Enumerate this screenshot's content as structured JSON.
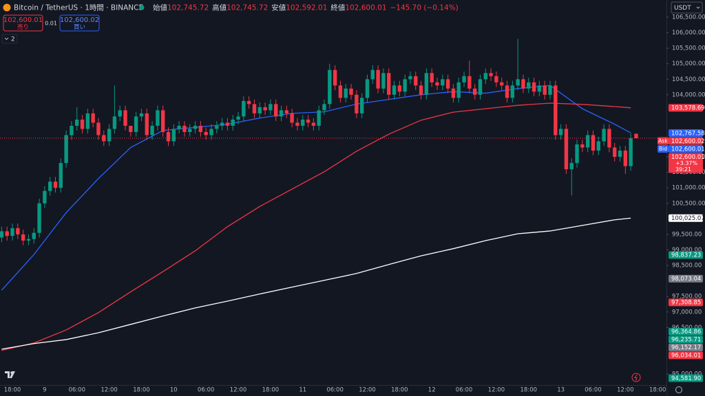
{
  "header": {
    "symbol": "Bitcoin / TetherUS · 1時間 · BINANCE",
    "ohlc": [
      {
        "label": "始値",
        "value": "102,745.72"
      },
      {
        "label": "高値",
        "value": "102,745.72"
      },
      {
        "label": "安値",
        "value": "102,592.01"
      },
      {
        "label": "終値",
        "value": "102,600.01"
      }
    ],
    "change": "−145.70 (−0.14%)"
  },
  "trade": {
    "sell_price": "102,600.01",
    "sell": "売り",
    "spread": "0.01",
    "buy_price": "102,600.02",
    "buy": "買い"
  },
  "indicators_count": "2",
  "currency": "USDT",
  "chart_data": {
    "type": "candlestick",
    "categories": [
      null,
      null,
      "18:00",
      null,
      null,
      null,
      null,
      null,
      "9",
      null,
      null,
      null,
      null,
      null,
      "06:00",
      null,
      null,
      null,
      null,
      null,
      "12:00",
      null,
      null,
      null,
      null,
      null,
      "18:00",
      null,
      null,
      null,
      null,
      null,
      "10",
      null,
      null,
      null,
      null,
      null,
      "06:00",
      null,
      null,
      null,
      null,
      null,
      "12:00",
      null,
      null,
      null,
      null,
      null,
      "18:00",
      null,
      null,
      null,
      null,
      null,
      "11",
      null,
      null,
      null,
      null,
      null,
      "06:00",
      null,
      null,
      null,
      null,
      null,
      "12:00",
      null,
      null,
      null,
      null,
      null,
      "18:00",
      null,
      null,
      null,
      null,
      null,
      "12",
      null,
      null,
      null,
      null,
      null,
      "06:00",
      null,
      null,
      null,
      null,
      null,
      "12:00",
      null,
      null,
      null,
      null,
      null,
      "18:00",
      null,
      null,
      null,
      null,
      null,
      "13",
      null,
      null,
      null,
      null,
      null,
      "06:00",
      null,
      null,
      null,
      null,
      null,
      "12:00",
      null,
      null,
      null,
      null,
      null,
      "18:00"
    ],
    "open": [
      99400,
      99600,
      99450,
      99700,
      99500,
      99300,
      99350,
      99550,
      100500,
      100900,
      101200,
      101000,
      101800,
      102700,
      103000,
      103200,
      102900,
      103400,
      103100,
      102700,
      102500,
      102900,
      103300,
      103500,
      103000,
      102800,
      103300,
      103400,
      102700,
      103000,
      103500,
      102800,
      102500,
      102900,
      103000,
      102800,
      102900,
      103000,
      102800,
      102700,
      102900,
      103000,
      103100,
      103000,
      103200,
      103300,
      103800,
      103700,
      103400,
      103600,
      103500,
      103700,
      103300,
      103500,
      103400,
      103100,
      103000,
      103200,
      103100,
      103000,
      103500,
      103700,
      104800,
      104300,
      103900,
      104200,
      104000,
      103400,
      103900,
      104500,
      104800,
      104200,
      104700,
      104000,
      104300,
      104100,
      104500,
      104600,
      104300,
      104000,
      104700,
      104400,
      104300,
      104500,
      104200,
      103900,
      104400,
      104600,
      104200,
      104000,
      104500,
      104700,
      104600,
      104400,
      104300,
      103900,
      104300,
      104500,
      104200,
      104400,
      104100,
      104300,
      104000,
      104300,
      102700,
      102900,
      101600,
      101800,
      102400,
      102300,
      102700,
      102200,
      102500,
      102900,
      102300,
      102000,
      102200,
      101700,
      102745.72,
      null,
      null,
      null,
      null
    ],
    "high": [
      99750,
      99750,
      99850,
      99850,
      99650,
      99500,
      99700,
      100650,
      101050,
      101350,
      101350,
      101950,
      102850,
      103150,
      103600,
      103350,
      103550,
      103550,
      103250,
      102850,
      103050,
      104300,
      103650,
      103650,
      102950,
      103450,
      103550,
      103550,
      103150,
      103650,
      103650,
      102950,
      103050,
      103150,
      103150,
      103050,
      103150,
      103150,
      102950,
      103050,
      103150,
      103250,
      103250,
      103350,
      103450,
      103950,
      103950,
      103850,
      103750,
      103750,
      103850,
      103850,
      103650,
      103650,
      103550,
      103250,
      103350,
      103350,
      103250,
      103650,
      103850,
      105000,
      104950,
      104450,
      104350,
      104350,
      104150,
      104050,
      104650,
      104950,
      104950,
      104850,
      104850,
      104450,
      104450,
      104650,
      104750,
      104750,
      104450,
      104850,
      104850,
      104550,
      104650,
      104650,
      104350,
      104550,
      104750,
      105100,
      104350,
      104650,
      104850,
      104850,
      104750,
      104550,
      104450,
      104450,
      105800,
      104650,
      104550,
      104550,
      104450,
      104450,
      104450,
      104450,
      103050,
      103050,
      101950,
      102550,
      102550,
      102850,
      102850,
      102650,
      103050,
      103050,
      102450,
      102350,
      102350,
      102750,
      102745.72,
      null,
      null,
      null,
      null
    ],
    "low": [
      99250,
      99300,
      99300,
      99350,
      99150,
      99150,
      99200,
      99400,
      100350,
      100750,
      100850,
      100850,
      101650,
      102550,
      102850,
      102750,
      102750,
      102950,
      102550,
      102350,
      102350,
      102750,
      103150,
      102850,
      102650,
      102650,
      103150,
      102550,
      102550,
      102850,
      102650,
      102350,
      102350,
      102750,
      102650,
      102650,
      102750,
      102650,
      102550,
      102550,
      102750,
      102850,
      102850,
      102850,
      103050,
      103150,
      103550,
      103250,
      103250,
      103350,
      103350,
      103150,
      103150,
      103250,
      102950,
      102850,
      102850,
      102950,
      102850,
      102850,
      103350,
      103550,
      104150,
      103750,
      103750,
      103850,
      103250,
      103250,
      103750,
      104350,
      104050,
      104050,
      103850,
      103850,
      103950,
      103950,
      104350,
      104150,
      103850,
      103850,
      104250,
      104150,
      104150,
      104050,
      103750,
      103750,
      104250,
      104050,
      103850,
      103850,
      104350,
      104450,
      104250,
      104150,
      103750,
      103750,
      104150,
      104050,
      104050,
      103950,
      103950,
      103850,
      103850,
      102550,
      102550,
      101450,
      100750,
      101650,
      102150,
      102150,
      102050,
      102050,
      102350,
      102150,
      101850,
      101850,
      101450,
      101550,
      102592.01,
      null,
      null,
      null,
      null
    ],
    "close": [
      99600,
      99450,
      99700,
      99500,
      99300,
      99350,
      99550,
      100500,
      100900,
      101200,
      101000,
      101800,
      102700,
      103000,
      103200,
      102900,
      103400,
      103100,
      102700,
      102500,
      102900,
      103300,
      103500,
      103000,
      102800,
      103300,
      103400,
      102700,
      103000,
      103500,
      102800,
      102500,
      102900,
      103000,
      102800,
      102900,
      103000,
      102800,
      102700,
      102900,
      103000,
      103100,
      103000,
      103200,
      103300,
      103800,
      103700,
      103400,
      103600,
      103500,
      103700,
      103300,
      103500,
      103400,
      103100,
      103000,
      103200,
      103100,
      103000,
      103500,
      103700,
      104800,
      104300,
      103900,
      104200,
      104000,
      103400,
      103900,
      104500,
      104800,
      104200,
      104700,
      104000,
      104300,
      104100,
      104500,
      104600,
      104300,
      104000,
      104700,
      104400,
      104300,
      104500,
      104200,
      103900,
      104400,
      104600,
      104200,
      104000,
      104500,
      104700,
      104600,
      104400,
      104300,
      103900,
      104300,
      104500,
      104200,
      104400,
      104100,
      104300,
      104000,
      104300,
      102700,
      102900,
      101600,
      101800,
      102400,
      102300,
      102700,
      102200,
      102500,
      102900,
      102300,
      102000,
      102200,
      101700,
      102600,
      102600.01,
      null,
      null,
      null,
      null
    ],
    "colors": {
      "up": "#089981",
      "down": "#f23645"
    },
    "lines": [
      {
        "color": "#2962ff",
        "x": [
          0,
          6,
          12,
          18,
          24,
          30,
          36,
          42,
          48,
          54,
          60,
          66,
          72,
          78,
          84,
          90,
          96,
          102,
          108,
          114,
          117
        ],
        "values": [
          97700,
          98850,
          100200,
          101300,
          102300,
          102850,
          102950,
          103050,
          103250,
          103400,
          103450,
          103700,
          103850,
          104000,
          104100,
          104050,
          104200,
          104300,
          103550,
          103050,
          102770
        ]
      },
      {
        "color": "#f23645",
        "x": [
          0,
          6,
          12,
          18,
          24,
          30,
          36,
          42,
          48,
          54,
          60,
          66,
          72,
          78,
          84,
          90,
          96,
          102,
          108,
          114,
          117
        ],
        "values": [
          95760,
          96000,
          96420,
          96980,
          97650,
          98300,
          98970,
          99750,
          100400,
          100960,
          101520,
          102180,
          102730,
          103180,
          103440,
          103550,
          103660,
          103730,
          103690,
          103620,
          103580
        ]
      },
      {
        "color": "#ffffff",
        "x": [
          0,
          6,
          12,
          18,
          24,
          30,
          36,
          42,
          48,
          54,
          60,
          66,
          72,
          78,
          84,
          90,
          96,
          102,
          108,
          114,
          117
        ],
        "values": [
          95800,
          95980,
          96110,
          96330,
          96600,
          96870,
          97130,
          97350,
          97580,
          97800,
          98020,
          98240,
          98530,
          98810,
          99040,
          99300,
          99520,
          99610,
          99790,
          99970,
          100025
        ]
      }
    ],
    "ylim": [
      94646,
      107054
    ],
    "yticks": [
      {
        "value": 106500,
        "label": "106,500.00"
      },
      {
        "value": 106000,
        "label": "106,000.00"
      },
      {
        "value": 105500,
        "label": "105,500.00"
      },
      {
        "value": 105000,
        "label": "105,000.00"
      },
      {
        "value": 104500,
        "label": "104,500.00"
      },
      {
        "value": 104000,
        "label": "104,000.00"
      },
      {
        "value": 102000,
        "label": "102,000.00"
      },
      {
        "value": 101500,
        "label": "101,500.00"
      },
      {
        "value": 101000,
        "label": "101,000.00"
      },
      {
        "value": 100500,
        "label": "100,500.00"
      },
      {
        "value": 99500,
        "label": "99,500.00"
      },
      {
        "value": 99000,
        "label": "99,000.00"
      },
      {
        "value": 98500,
        "label": "98,500.00"
      },
      {
        "value": 97500,
        "label": "97,500.00"
      },
      {
        "value": 97000,
        "label": "97,000.00"
      },
      {
        "value": 96500,
        "label": "96,500.00"
      },
      {
        "value": 95000,
        "label": "95,000.00"
      }
    ],
    "grid": false,
    "price_badges": [
      {
        "value": 103578.69,
        "label": "103,578.69",
        "color": "#f23645"
      },
      {
        "value": 102767.58,
        "label": "102,767.58",
        "color": "#2962ff"
      },
      {
        "value": 102600.02,
        "label": "102,600.02",
        "color": "#f23645",
        "tag": "Ask"
      },
      {
        "value": 102600.01,
        "label": "102,600.01",
        "color": "#2962ff",
        "tag": "Bid"
      },
      {
        "value": 102600.01,
        "label": "102,600.01",
        "color": "#f23645",
        "lines": [
          "+3.37%",
          "39:21"
        ]
      },
      {
        "value": 100025.07,
        "label": "100,025.07",
        "color": "#ffffff"
      },
      {
        "value": 98837.23,
        "label": "98,837.23",
        "color": "#089981"
      },
      {
        "value": 98073.04,
        "label": "98,073.04",
        "color": "#787b86"
      },
      {
        "value": 97308.85,
        "label": "97,308.85",
        "color": "#f23645"
      },
      {
        "value": 96364.86,
        "label": "96,364.86",
        "color": "#089981"
      },
      {
        "value": 96235.71,
        "label": "96,235.71",
        "color": "#089981"
      },
      {
        "value": 96152.17,
        "label": "96,152.17",
        "color": "#787b86"
      },
      {
        "value": 96034.01,
        "label": "96,034.01",
        "color": "#f23645"
      },
      {
        "value": 94581.9,
        "label": "94,581.90",
        "color": "#089981"
      }
    ]
  }
}
